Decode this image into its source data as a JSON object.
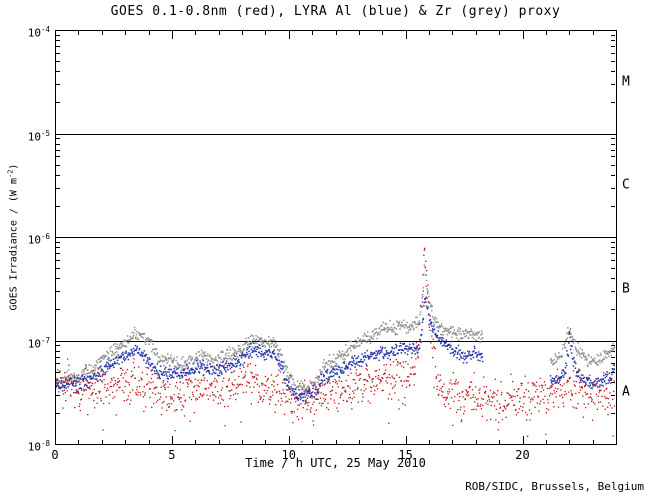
{
  "chart_data": {
    "type": "scatter",
    "title": "GOES 0.1-0.8nm (red), LYRA Al (blue) & Zr (grey) proxy",
    "xlabel": "Time / h UTC, 25 May 2010",
    "ylabel": {
      "pre": "GOES Irradiance / (W m",
      "sup": "-2",
      "post": ")"
    },
    "footer": "ROB/SIDC, Brussels, Belgium",
    "xlim": [
      0,
      24
    ],
    "ylog_lim": [
      -8,
      -4
    ],
    "grid": false,
    "legend": "none (colors named in title)",
    "xticks": [
      0,
      5,
      10,
      15,
      20
    ],
    "xtick_minor_step": 1,
    "yticks": [
      {
        "exp": -8
      },
      {
        "exp": -7
      },
      {
        "exp": -6
      },
      {
        "exp": -5
      },
      {
        "exp": -4
      }
    ],
    "hlines_exp": [
      -7,
      -6,
      -5
    ],
    "class_bands": [
      {
        "label": "A",
        "center_exp": -7.5
      },
      {
        "label": "B",
        "center_exp": -6.5
      },
      {
        "label": "C",
        "center_exp": -5.5
      },
      {
        "label": "M",
        "center_exp": -4.5
      }
    ],
    "series": [
      {
        "name": "LYRA Zr proxy",
        "color": "#909090",
        "style": "scatter",
        "noise": 0.032,
        "dot": 1.5,
        "outlier_prob": 0.0,
        "outlier_mag": 0.0,
        "segments": [
          [
            [
              0,
              -7.38
            ],
            [
              0.3,
              -7.4
            ],
            [
              0.6,
              -7.35
            ],
            [
              1,
              -7.35
            ],
            [
              1.5,
              -7.3
            ],
            [
              2,
              -7.2
            ],
            [
              2.5,
              -7.1
            ],
            [
              3,
              -7.02
            ],
            [
              3.3,
              -6.97
            ],
            [
              3.7,
              -6.95
            ],
            [
              4,
              -7.0
            ],
            [
              4.3,
              -7.12
            ],
            [
              4.6,
              -7.2
            ],
            [
              5,
              -7.18
            ],
            [
              5.3,
              -7.25
            ],
            [
              5.6,
              -7.22
            ],
            [
              6,
              -7.18
            ],
            [
              6.3,
              -7.15
            ],
            [
              6.6,
              -7.18
            ],
            [
              7,
              -7.2
            ],
            [
              7.3,
              -7.15
            ],
            [
              7.6,
              -7.12
            ],
            [
              8,
              -7.08
            ],
            [
              8.3,
              -7.02
            ],
            [
              8.6,
              -6.98
            ],
            [
              8.8,
              -7.0
            ],
            [
              9,
              -7.05
            ],
            [
              9.3,
              -7.0
            ],
            [
              9.6,
              -7.1
            ],
            [
              10,
              -7.35
            ],
            [
              10.4,
              -7.45
            ],
            [
              10.8,
              -7.45
            ],
            [
              11.2,
              -7.4
            ],
            [
              11.5,
              -7.25
            ],
            [
              12,
              -7.18
            ],
            [
              12.5,
              -7.1
            ],
            [
              13,
              -7.02
            ],
            [
              13.5,
              -6.95
            ],
            [
              14,
              -6.9
            ],
            [
              14.5,
              -6.88
            ],
            [
              15,
              -6.85
            ],
            [
              15.3,
              -6.87
            ],
            [
              15.6,
              -6.8
            ],
            [
              15.75,
              -6.5
            ],
            [
              15.82,
              -6.2
            ],
            [
              15.9,
              -6.45
            ],
            [
              16,
              -6.6
            ],
            [
              16.2,
              -6.8
            ],
            [
              16.5,
              -6.88
            ],
            [
              16.8,
              -6.9
            ],
            [
              17.1,
              -6.92
            ],
            [
              17.5,
              -6.95
            ],
            [
              17.9,
              -6.93
            ],
            [
              18.3,
              -6.98
            ]
          ],
          [
            [
              21.2,
              -7.22
            ],
            [
              21.5,
              -7.18
            ],
            [
              21.8,
              -7.08
            ],
            [
              21.95,
              -6.92
            ],
            [
              22.05,
              -6.9
            ],
            [
              22.15,
              -7.0
            ],
            [
              22.3,
              -7.08
            ],
            [
              22.6,
              -7.15
            ],
            [
              23,
              -7.2
            ],
            [
              23.4,
              -7.18
            ],
            [
              23.7,
              -7.12
            ],
            [
              24,
              -7.05
            ]
          ]
        ]
      },
      {
        "name": "LYRA Al proxy",
        "color": "#2233aa",
        "style": "scatter",
        "noise": 0.032,
        "dot": 1.5,
        "outlier_prob": 0.0,
        "outlier_mag": 0.0,
        "segments": [
          [
            [
              0,
              -7.42
            ],
            [
              0.3,
              -7.45
            ],
            [
              0.6,
              -7.4
            ],
            [
              1,
              -7.42
            ],
            [
              1.5,
              -7.38
            ],
            [
              2,
              -7.3
            ],
            [
              2.5,
              -7.22
            ],
            [
              3,
              -7.15
            ],
            [
              3.3,
              -7.12
            ],
            [
              3.6,
              -7.1
            ],
            [
              4,
              -7.18
            ],
            [
              4.3,
              -7.28
            ],
            [
              4.6,
              -7.33
            ],
            [
              5,
              -7.3
            ],
            [
              5.3,
              -7.35
            ],
            [
              5.6,
              -7.3
            ],
            [
              6,
              -7.28
            ],
            [
              6.3,
              -7.25
            ],
            [
              6.6,
              -7.28
            ],
            [
              7,
              -7.3
            ],
            [
              7.3,
              -7.25
            ],
            [
              7.6,
              -7.22
            ],
            [
              8,
              -7.18
            ],
            [
              8.3,
              -7.12
            ],
            [
              8.6,
              -7.08
            ],
            [
              8.8,
              -7.1
            ],
            [
              9,
              -7.15
            ],
            [
              9.3,
              -7.1
            ],
            [
              9.6,
              -7.2
            ],
            [
              10,
              -7.45
            ],
            [
              10.4,
              -7.55
            ],
            [
              10.8,
              -7.55
            ],
            [
              11.2,
              -7.5
            ],
            [
              11.5,
              -7.35
            ],
            [
              12,
              -7.3
            ],
            [
              12.5,
              -7.25
            ],
            [
              13,
              -7.2
            ],
            [
              13.5,
              -7.15
            ],
            [
              14,
              -7.12
            ],
            [
              14.5,
              -7.1
            ],
            [
              15,
              -7.08
            ],
            [
              15.4,
              -7.1
            ],
            [
              15.6,
              -7.05
            ],
            [
              15.75,
              -6.8
            ],
            [
              15.82,
              -6.55
            ],
            [
              15.9,
              -6.65
            ],
            [
              16,
              -6.75
            ],
            [
              16.2,
              -6.9
            ],
            [
              16.5,
              -7.0
            ],
            [
              16.8,
              -7.05
            ],
            [
              17.1,
              -7.1
            ],
            [
              17.5,
              -7.15
            ],
            [
              17.9,
              -7.12
            ],
            [
              18.3,
              -7.15
            ]
          ],
          [
            [
              21.2,
              -7.4
            ],
            [
              21.5,
              -7.38
            ],
            [
              21.8,
              -7.3
            ],
            [
              21.95,
              -7.12
            ],
            [
              22.0,
              -6.98
            ],
            [
              22.1,
              -7.1
            ],
            [
              22.3,
              -7.3
            ],
            [
              22.6,
              -7.38
            ],
            [
              23,
              -7.42
            ],
            [
              23.4,
              -7.38
            ],
            [
              23.7,
              -7.35
            ],
            [
              24,
              -7.3
            ]
          ]
        ]
      },
      {
        "name": "GOES 0.1-0.8nm",
        "color": "#bb1111",
        "style": "scatter",
        "noise": 0.1,
        "dot": 1.3,
        "outlier_prob": 0.04,
        "outlier_mag": 0.25,
        "segments": [
          [
            [
              0,
              -7.42
            ],
            [
              0.5,
              -7.45
            ],
            [
              1,
              -7.44
            ],
            [
              1.5,
              -7.46
            ],
            [
              2,
              -7.43
            ],
            [
              2.5,
              -7.42
            ],
            [
              3,
              -7.38
            ],
            [
              3.5,
              -7.42
            ],
            [
              4,
              -7.45
            ],
            [
              4.5,
              -7.5
            ],
            [
              5,
              -7.52
            ],
            [
              5.5,
              -7.5
            ],
            [
              6,
              -7.45
            ],
            [
              6.5,
              -7.43
            ],
            [
              7,
              -7.45
            ],
            [
              7.5,
              -7.45
            ],
            [
              8,
              -7.4
            ],
            [
              8.5,
              -7.38
            ],
            [
              9,
              -7.43
            ],
            [
              9.5,
              -7.48
            ],
            [
              10,
              -7.52
            ],
            [
              10.5,
              -7.58
            ],
            [
              11,
              -7.55
            ],
            [
              11.5,
              -7.5
            ],
            [
              12,
              -7.5
            ],
            [
              12.5,
              -7.48
            ],
            [
              13,
              -7.45
            ],
            [
              13.5,
              -7.42
            ],
            [
              14,
              -7.4
            ],
            [
              14.5,
              -7.38
            ],
            [
              15,
              -7.35
            ],
            [
              15.4,
              -7.25
            ],
            [
              15.6,
              -6.95
            ],
            [
              15.72,
              -6.5
            ],
            [
              15.8,
              -6.1
            ],
            [
              15.88,
              -6.35
            ],
            [
              16,
              -6.75
            ],
            [
              16.15,
              -7.1
            ],
            [
              16.35,
              -7.4
            ],
            [
              16.6,
              -7.5
            ],
            [
              17,
              -7.5
            ],
            [
              17.5,
              -7.52
            ],
            [
              18,
              -7.55
            ],
            [
              18.5,
              -7.58
            ],
            [
              19,
              -7.6
            ],
            [
              19.5,
              -7.58
            ],
            [
              20,
              -7.55
            ],
            [
              20.5,
              -7.52
            ],
            [
              21,
              -7.5
            ],
            [
              21.5,
              -7.48
            ],
            [
              22,
              -7.45
            ],
            [
              22.5,
              -7.5
            ],
            [
              23,
              -7.52
            ],
            [
              23.5,
              -7.5
            ],
            [
              24,
              -7.48
            ]
          ]
        ]
      }
    ]
  }
}
